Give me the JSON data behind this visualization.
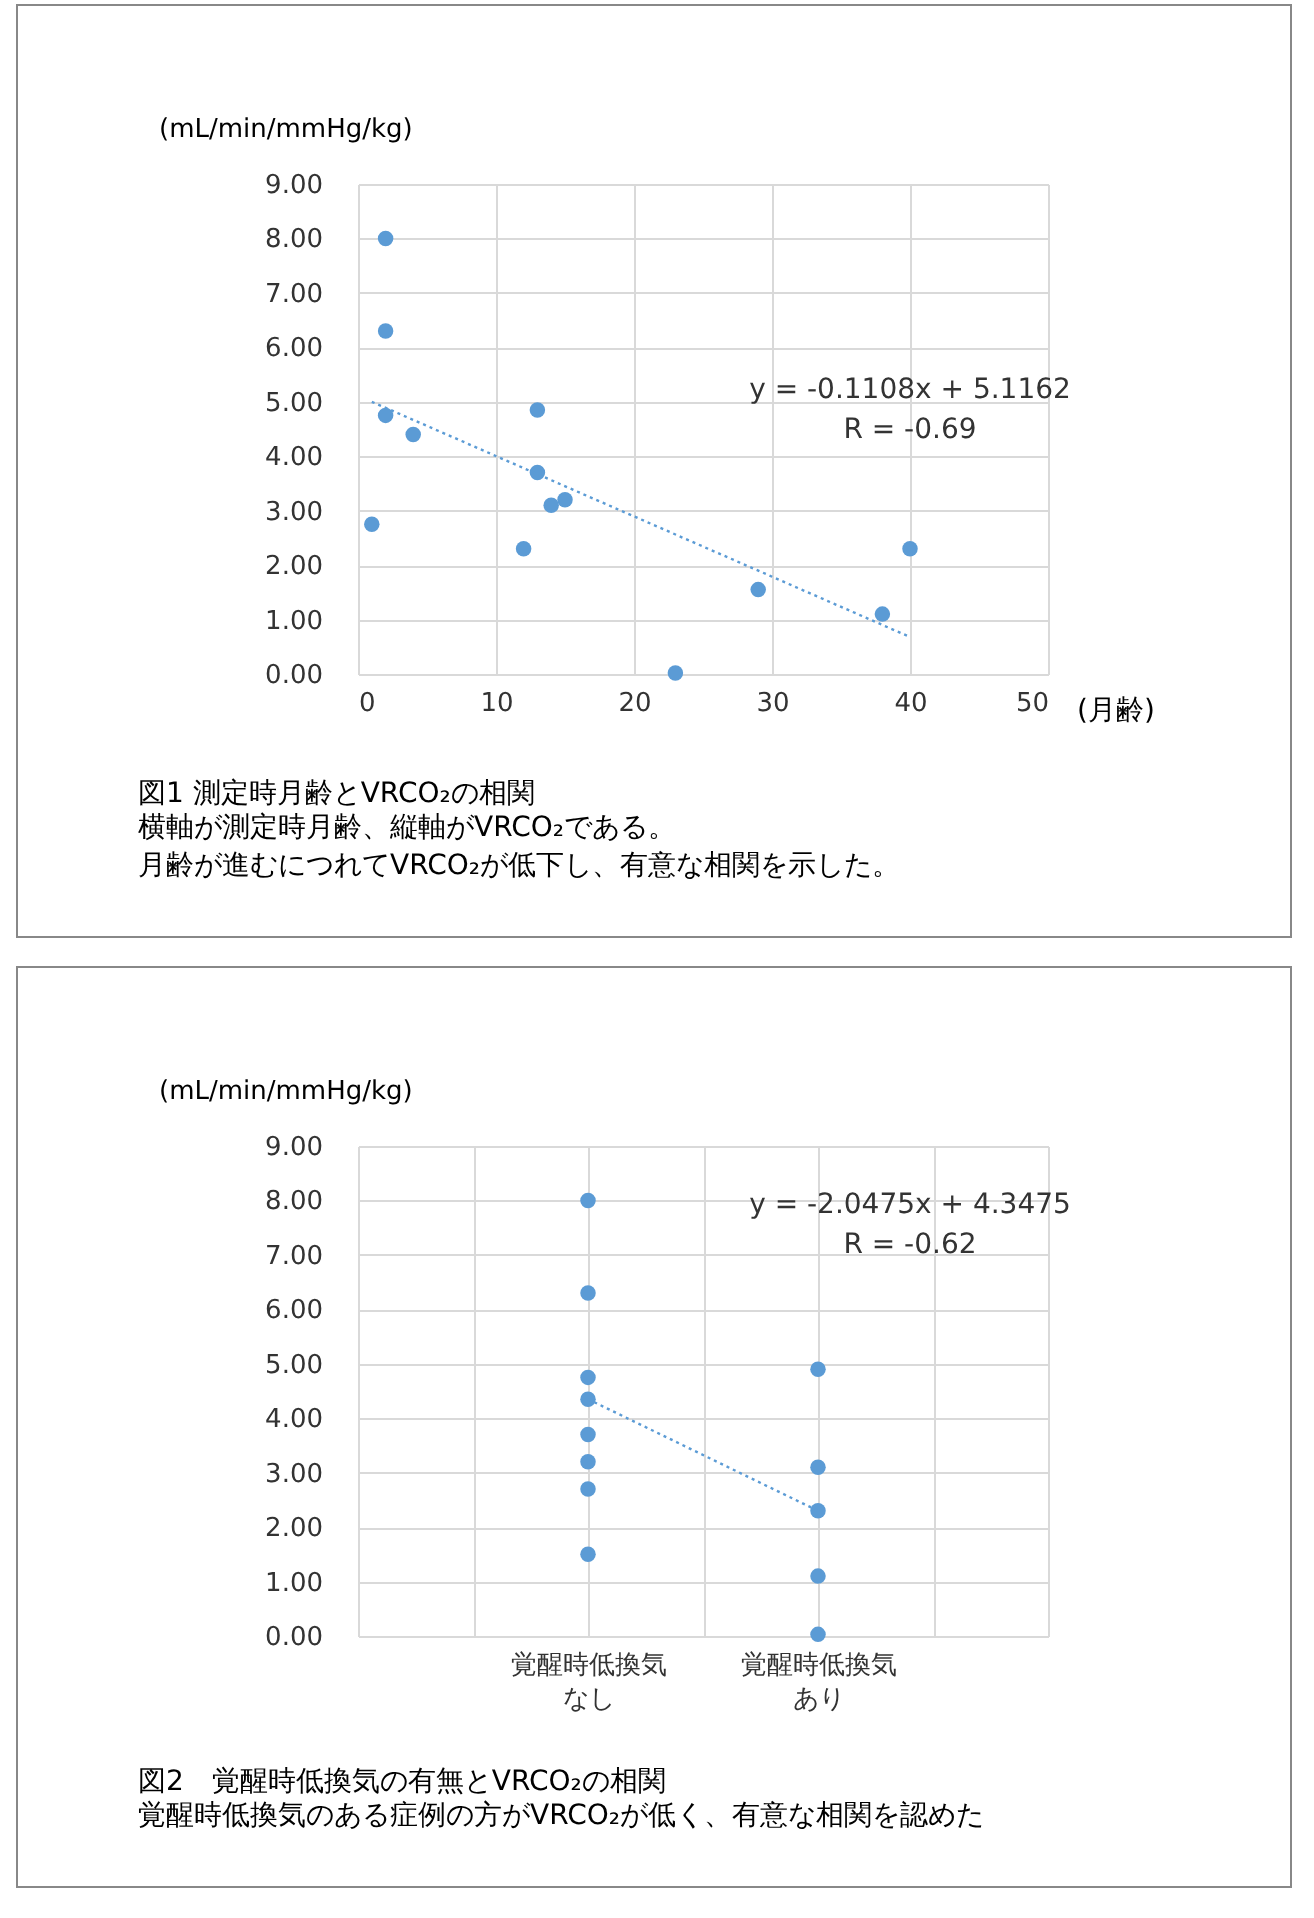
{
  "chart_data": [
    {
      "type": "scatter",
      "title": "図1 測定時月齢とVRCO₂の相関",
      "subtitle": "横軸が測定時月齢、縦軸がVRCO₂である。",
      "xlabel": "(月齢)",
      "ylabel": "(mL/min/mmHg/kg)",
      "xlim": [
        0,
        50
      ],
      "xticks": [
        0,
        10,
        20,
        30,
        40,
        50
      ],
      "ylim": [
        0,
        9
      ],
      "yticks": [
        {
          "value": 0,
          "label": "0.00"
        },
        {
          "value": 1,
          "label": "1.00"
        },
        {
          "value": 2,
          "label": "2.00"
        },
        {
          "value": 3,
          "label": "3.00"
        },
        {
          "value": 4,
          "label": "4.00"
        },
        {
          "value": 5,
          "label": "5.00"
        },
        {
          "value": 6,
          "label": "6.00"
        },
        {
          "value": 7,
          "label": "7.00"
        },
        {
          "value": 8,
          "label": "8.00"
        },
        {
          "value": 9,
          "label": "9.00"
        }
      ],
      "grid": true,
      "series": [
        {
          "type": "scatter",
          "color": "#5b9bd5",
          "x": [
            1,
            2,
            2,
            2,
            4,
            12,
            13,
            13,
            14,
            15,
            23,
            29,
            38,
            40
          ],
          "values": [
            2.75,
            8.0,
            6.3,
            4.75,
            4.4,
            2.3,
            4.85,
            3.7,
            3.1,
            3.2,
            0.02,
            1.55,
            1.1,
            2.3
          ]
        },
        {
          "type": "line",
          "color": "#5b9bd5",
          "line_style": "dotted",
          "x": [
            1,
            40
          ],
          "values": [
            5.0,
            0.68
          ]
        }
      ],
      "annotations": [
        "y = -0.1108x + 5.1162",
        "R = -0.69",
        "月齢が進むにつれてVRCO₂が低下し、有意な相関を示した。"
      ]
    },
    {
      "type": "scatter",
      "title": "図2　覚醒時低換気の有無とVRCO₂の相関",
      "subtitle": "覚醒時低換気のある症例の方がVRCO₂が低く、有意な相関を認めた",
      "ylabel": "(mL/min/mmHg/kg)",
      "categories": [
        "覚醒時低換気なし",
        "覚醒時低換気あり"
      ],
      "ylim": [
        0,
        9
      ],
      "yticks": [
        {
          "value": 0,
          "label": "0.00"
        },
        {
          "value": 1,
          "label": "1.00"
        },
        {
          "value": 2,
          "label": "2.00"
        },
        {
          "value": 3,
          "label": "3.00"
        },
        {
          "value": 4,
          "label": "4.00"
        },
        {
          "value": 5,
          "label": "5.00"
        },
        {
          "value": 6,
          "label": "6.00"
        },
        {
          "value": 7,
          "label": "7.00"
        },
        {
          "value": 8,
          "label": "8.00"
        },
        {
          "value": 9,
          "label": "9.00"
        }
      ],
      "grid": true,
      "series": [
        {
          "type": "scatter",
          "color": "#5b9bd5",
          "x": [
            "覚醒時低換気なし",
            "覚醒時低換気なし",
            "覚醒時低換気なし",
            "覚醒時低換気なし",
            "覚醒時低換気なし",
            "覚醒時低換気なし",
            "覚醒時低換気なし",
            "覚醒時低換気なし",
            "覚醒時低換気あり",
            "覚醒時低換気あり",
            "覚醒時低換気あり",
            "覚醒時低換気あり",
            "覚醒時低換気あり"
          ],
          "values": [
            8.0,
            6.3,
            4.75,
            4.35,
            3.7,
            3.2,
            2.7,
            1.5,
            4.9,
            3.1,
            2.3,
            1.1,
            0.03
          ]
        },
        {
          "type": "line",
          "color": "#5b9bd5",
          "line_style": "dotted",
          "x": [
            "覚醒時低換気なし",
            "覚醒時低換気あり"
          ],
          "values": [
            4.35,
            2.3
          ]
        }
      ],
      "annotations": [
        "y = -2.0475x + 4.3475",
        "R = -0.62"
      ]
    }
  ]
}
